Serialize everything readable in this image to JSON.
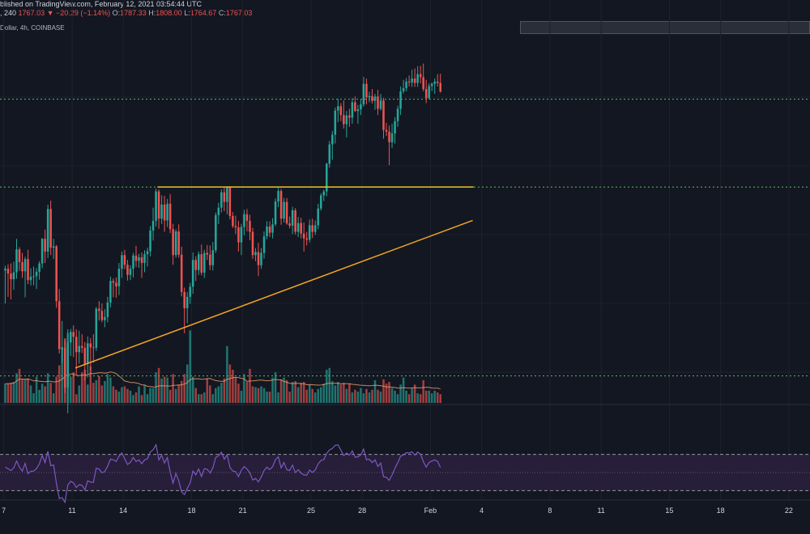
{
  "header": {
    "line1": {
      "published": "blished on TradingView.com, February 12, 2021 03:54:44 UTC",
      "interval_prefix": ", 240",
      "close_value": "1767.03",
      "change_arrow": "▼",
      "change": "−20.29 (−1.14%)",
      "o_label": "O:",
      "o_value": "1787.33",
      "h_label": "H:",
      "h_value": "1808.00",
      "l_label": "L:",
      "l_value": "1764.67",
      "c_label": "C:",
      "c_value": "1767.03"
    },
    "line2": "Dollar, 4h, COINBASE"
  },
  "colors": {
    "background": "#131722",
    "up": "#26a69a",
    "down": "#ef5350",
    "support_resistance": "#4caf50",
    "trendline": "#f5a623",
    "resistance_line": "#e8c41f",
    "volume_ma": "#f0a56d",
    "rsi_line": "#7e57c2",
    "rsi_band": "#2a1f3d"
  },
  "chart_data": [
    {
      "type": "candlestick",
      "title": "",
      "ylabel": "",
      "xlabel": "",
      "ylim": [
        1110,
        1880
      ],
      "x_ticks": [
        "7",
        "11",
        "14",
        "18",
        "21",
        "25",
        "28",
        "Feb",
        "4",
        "8",
        "11",
        "15",
        "18",
        "22"
      ],
      "horizontal_levels": [
        1120,
        1550,
        1750
      ],
      "resistance_segment": {
        "start": "Jan 16",
        "end": "Feb 4",
        "price": 1550
      },
      "trendline": {
        "from": [
          "Jan 11",
          1138
        ],
        "to": [
          "Feb 3",
          1474
        ]
      },
      "ohlc_4h": [
        [
          1360,
          1371,
          1285,
          1364
        ],
        [
          1364,
          1374,
          1300,
          1353
        ],
        [
          1353,
          1376,
          1294,
          1340
        ],
        [
          1340,
          1380,
          1316,
          1356
        ],
        [
          1356,
          1432,
          1341,
          1408
        ],
        [
          1408,
          1413,
          1359,
          1379
        ],
        [
          1379,
          1400,
          1343,
          1358
        ],
        [
          1358,
          1391,
          1299,
          1386
        ],
        [
          1386,
          1407,
          1329,
          1338
        ],
        [
          1338,
          1365,
          1326,
          1346
        ],
        [
          1346,
          1369,
          1326,
          1347
        ],
        [
          1347,
          1365,
          1318,
          1357
        ],
        [
          1357,
          1381,
          1339,
          1376
        ],
        [
          1376,
          1434,
          1365,
          1432
        ],
        [
          1432,
          1453,
          1377,
          1403
        ],
        [
          1403,
          1510,
          1388,
          1500
        ],
        [
          1500,
          1519,
          1395,
          1412
        ],
        [
          1412,
          1432,
          1386,
          1415
        ],
        [
          1415,
          1418,
          1275,
          1290
        ],
        [
          1290,
          1318,
          1171,
          1181
        ],
        [
          1181,
          1245,
          1150,
          1184
        ],
        [
          1184,
          1201,
          1081,
          1093
        ],
        [
          1093,
          1226,
          1035,
          1196
        ],
        [
          1196,
          1227,
          1165,
          1220
        ],
        [
          1220,
          1235,
          1163,
          1209
        ],
        [
          1209,
          1226,
          1123,
          1174
        ],
        [
          1174,
          1223,
          1148,
          1188
        ],
        [
          1188,
          1215,
          1172,
          1184
        ],
        [
          1184,
          1197,
          1110,
          1147
        ],
        [
          1147,
          1210,
          1116,
          1194
        ],
        [
          1194,
          1206,
          1132,
          1185
        ],
        [
          1185,
          1215,
          1150,
          1184
        ],
        [
          1184,
          1277,
          1177,
          1273
        ],
        [
          1273,
          1290,
          1246,
          1268
        ],
        [
          1268,
          1285,
          1242,
          1247
        ],
        [
          1247,
          1272,
          1231,
          1254
        ],
        [
          1254,
          1300,
          1242,
          1287
        ],
        [
          1287,
          1346,
          1276,
          1336
        ],
        [
          1336,
          1342,
          1299,
          1332
        ],
        [
          1332,
          1344,
          1298,
          1324
        ],
        [
          1324,
          1377,
          1304,
          1364
        ],
        [
          1364,
          1403,
          1343,
          1395
        ],
        [
          1395,
          1407,
          1363,
          1373
        ],
        [
          1373,
          1384,
          1337,
          1350
        ],
        [
          1350,
          1372,
          1338,
          1364
        ],
        [
          1364,
          1400,
          1344,
          1394
        ],
        [
          1394,
          1416,
          1368,
          1382
        ],
        [
          1382,
          1398,
          1366,
          1390
        ],
        [
          1390,
          1401,
          1343,
          1377
        ],
        [
          1377,
          1406,
          1356,
          1397
        ],
        [
          1397,
          1412,
          1369,
          1404
        ],
        [
          1404,
          1461,
          1392,
          1451
        ],
        [
          1451,
          1503,
          1428,
          1473
        ],
        [
          1473,
          1546,
          1460,
          1540
        ],
        [
          1540,
          1545,
          1455,
          1478
        ],
        [
          1478,
          1531,
          1466,
          1510
        ],
        [
          1510,
          1530,
          1448,
          1474
        ],
        [
          1474,
          1523,
          1459,
          1512
        ],
        [
          1512,
          1534,
          1445,
          1454
        ],
        [
          1454,
          1466,
          1373,
          1395
        ],
        [
          1395,
          1454,
          1389,
          1449
        ],
        [
          1449,
          1465,
          1389,
          1396
        ],
        [
          1396,
          1414,
          1301,
          1311
        ],
        [
          1311,
          1321,
          1217,
          1274
        ],
        [
          1274,
          1311,
          1240,
          1300
        ],
        [
          1300,
          1332,
          1284,
          1323
        ],
        [
          1323,
          1401,
          1307,
          1384
        ],
        [
          1384,
          1392,
          1336,
          1361
        ],
        [
          1361,
          1403,
          1350,
          1397
        ],
        [
          1397,
          1419,
          1349,
          1355
        ],
        [
          1355,
          1407,
          1343,
          1400
        ],
        [
          1400,
          1418,
          1384,
          1396
        ],
        [
          1396,
          1417,
          1361,
          1372
        ],
        [
          1372,
          1425,
          1360,
          1406
        ],
        [
          1406,
          1492,
          1400,
          1486
        ],
        [
          1486,
          1514,
          1466,
          1503
        ],
        [
          1503,
          1545,
          1492,
          1538
        ],
        [
          1538,
          1550,
          1495,
          1516
        ],
        [
          1516,
          1552,
          1488,
          1549
        ],
        [
          1549,
          1552,
          1476,
          1484
        ],
        [
          1484,
          1493,
          1457,
          1461
        ],
        [
          1461,
          1485,
          1443,
          1458
        ],
        [
          1458,
          1473,
          1403,
          1424
        ],
        [
          1424,
          1466,
          1395,
          1459
        ],
        [
          1459,
          1498,
          1440,
          1488
        ],
        [
          1488,
          1500,
          1449,
          1473
        ],
        [
          1473,
          1487,
          1429,
          1448
        ],
        [
          1448,
          1457,
          1386,
          1395
        ],
        [
          1395,
          1411,
          1381,
          1402
        ],
        [
          1402,
          1423,
          1347,
          1372
        ],
        [
          1372,
          1411,
          1364,
          1400
        ],
        [
          1400,
          1449,
          1387,
          1438
        ],
        [
          1438,
          1472,
          1431,
          1460
        ],
        [
          1460,
          1472,
          1436,
          1446
        ],
        [
          1446,
          1479,
          1433,
          1465
        ],
        [
          1465,
          1524,
          1461,
          1517
        ],
        [
          1517,
          1548,
          1504,
          1541
        ],
        [
          1541,
          1546,
          1464,
          1478
        ],
        [
          1478,
          1525,
          1469,
          1516
        ],
        [
          1516,
          1525,
          1464,
          1467
        ],
        [
          1467,
          1483,
          1456,
          1462
        ],
        [
          1462,
          1505,
          1443,
          1497
        ],
        [
          1497,
          1502,
          1442,
          1448
        ],
        [
          1448,
          1482,
          1436,
          1468
        ],
        [
          1468,
          1480,
          1433,
          1444
        ],
        [
          1444,
          1469,
          1403,
          1433
        ],
        [
          1433,
          1448,
          1417,
          1430
        ],
        [
          1430,
          1476,
          1424,
          1463
        ],
        [
          1463,
          1478,
          1434,
          1448
        ],
        [
          1448,
          1474,
          1441,
          1463
        ],
        [
          1463,
          1512,
          1454,
          1501
        ],
        [
          1501,
          1536,
          1496,
          1531
        ],
        [
          1531,
          1544,
          1518,
          1540
        ],
        [
          1540,
          1605,
          1529,
          1603
        ],
        [
          1603,
          1655,
          1594,
          1647
        ],
        [
          1647,
          1678,
          1612,
          1669
        ],
        [
          1669,
          1731,
          1649,
          1724
        ],
        [
          1724,
          1751,
          1698,
          1734
        ],
        [
          1734,
          1741,
          1700,
          1714
        ],
        [
          1714,
          1747,
          1683,
          1693
        ],
        [
          1693,
          1723,
          1663,
          1713
        ],
        [
          1713,
          1728,
          1687,
          1708
        ],
        [
          1708,
          1752,
          1694,
          1743
        ],
        [
          1743,
          1756,
          1721,
          1723
        ],
        [
          1723,
          1737,
          1694,
          1727
        ],
        [
          1727,
          1751,
          1714,
          1738
        ],
        [
          1738,
          1801,
          1733,
          1785
        ],
        [
          1785,
          1797,
          1738,
          1754
        ],
        [
          1754,
          1767,
          1743,
          1757
        ],
        [
          1757,
          1773,
          1740,
          1746
        ],
        [
          1746,
          1762,
          1726,
          1756
        ],
        [
          1756,
          1771,
          1714,
          1728
        ],
        [
          1728,
          1762,
          1724,
          1747
        ],
        [
          1747,
          1753,
          1660,
          1680
        ],
        [
          1680,
          1696,
          1666,
          1676
        ],
        [
          1676,
          1690,
          1600,
          1652
        ],
        [
          1652,
          1694,
          1639,
          1672
        ],
        [
          1672,
          1709,
          1649,
          1700
        ],
        [
          1700,
          1735,
          1687,
          1728
        ],
        [
          1728,
          1779,
          1714,
          1768
        ],
        [
          1768,
          1794,
          1763,
          1775
        ],
        [
          1775,
          1798,
          1768,
          1790
        ],
        [
          1790,
          1804,
          1779,
          1788
        ],
        [
          1788,
          1817,
          1778,
          1797
        ],
        [
          1797,
          1820,
          1778,
          1787
        ],
        [
          1787,
          1825,
          1778,
          1807
        ],
        [
          1807,
          1826,
          1786,
          1800
        ],
        [
          1800,
          1831,
          1768,
          1773
        ],
        [
          1773,
          1794,
          1741,
          1752
        ],
        [
          1752,
          1786,
          1750,
          1780
        ],
        [
          1780,
          1788,
          1768,
          1785
        ],
        [
          1785,
          1797,
          1762,
          1790
        ],
        [
          1790,
          1807,
          1779,
          1787
        ],
        [
          1787,
          1808,
          1765,
          1767
        ]
      ],
      "volume_relative": [
        0.22,
        0.22,
        0.23,
        0.24,
        0.34,
        0.39,
        0.27,
        0.27,
        0.28,
        0.2,
        0.11,
        0.3,
        0.15,
        0.22,
        0.19,
        0.34,
        0.23,
        0.11,
        0.3,
        0.43,
        0.64,
        0.74,
        0.8,
        0.3,
        0.35,
        0.1,
        0.2,
        0.35,
        0.38,
        0.21,
        0.42,
        0.23,
        0.26,
        0.31,
        0.2,
        0.25,
        0.33,
        0.29,
        0.19,
        0.15,
        0.13,
        0.18,
        0.19,
        0.16,
        0.14,
        0.09,
        0.12,
        0.19,
        0.09,
        0.2,
        0.1,
        0.17,
        0.17,
        0.35,
        0.4,
        0.28,
        0.3,
        0.29,
        0.15,
        0.33,
        0.16,
        0.21,
        0.25,
        0.33,
        0.44,
        0.83,
        0.3,
        0.17,
        0.1,
        0.1,
        0.12,
        0.28,
        0.2,
        0.1,
        0.17,
        0.19,
        0.23,
        0.28,
        0.65,
        0.44,
        0.38,
        0.29,
        0.22,
        0.14,
        0.33,
        0.24,
        0.39,
        0.19,
        0.18,
        0.17,
        0.19,
        0.17,
        0.13,
        0.13,
        0.29,
        0.35,
        0.12,
        0.27,
        0.29,
        0.26,
        0.13,
        0.24,
        0.25,
        0.18,
        0.23,
        0.24,
        0.15,
        0.21,
        0.16,
        0.12,
        0.16,
        0.18,
        0.22,
        0.38,
        0.4,
        0.25,
        0.2,
        0.24,
        0.21,
        0.23,
        0.16,
        0.22,
        0.12,
        0.15,
        0.13,
        0.17,
        0.11,
        0.16,
        0.12,
        0.15,
        0.26,
        0.15,
        0.13,
        0.27,
        0.22,
        0.24,
        0.17,
        0.14,
        0.1,
        0.21,
        0.29,
        0.14,
        0.1,
        0.17,
        0.21,
        0.11,
        0.1,
        0.26,
        0.14,
        0.14,
        0.11,
        0.14,
        0.12,
        0.1
      ]
    },
    {
      "type": "line",
      "title": "",
      "ylim": [
        0,
        100
      ],
      "bands": [
        30,
        50,
        70
      ],
      "rsi": [
        55.8,
        54.1,
        52.2,
        55.2,
        62.7,
        56.1,
        51.5,
        60.1,
        48.8,
        51.3,
        51.6,
        54.3,
        59.5,
        68.8,
        60.8,
        73.3,
        57.5,
        58.3,
        37.9,
        21.4,
        22.2,
        17.1,
        36.2,
        40.3,
        38.7,
        33.6,
        36.6,
        35.9,
        30.9,
        40.9,
        39.4,
        39.2,
        54.8,
        53.8,
        49.6,
        51.2,
        57.0,
        64.7,
        63.9,
        62.2,
        67.9,
        71.6,
        65.2,
        58.8,
        61.3,
        66.5,
        62.2,
        63.8,
        59.7,
        63.8,
        65.2,
        72.8,
        75.2,
        80.6,
        63.9,
        68.9,
        60.5,
        66.4,
        50.6,
        38.2,
        49.0,
        40.7,
        28.6,
        25.6,
        32.5,
        38.2,
        51.7,
        47.5,
        53.9,
        45.5,
        54.3,
        53.6,
        49.5,
        55.3,
        66.5,
        68.5,
        72.4,
        64.7,
        69.4,
        55.6,
        51.6,
        51.0,
        45.5,
        52.4,
        56.6,
        53.8,
        49.5,
        41.7,
        43.5,
        39.6,
        45.0,
        52.1,
        55.9,
        53.2,
        56.4,
        64.3,
        67.3,
        55.1,
        61.0,
        53.0,
        52.2,
        58.1,
        49.9,
        53.1,
        49.2,
        47.4,
        47.0,
        52.8,
        50.2,
        52.7,
        59.5,
        63.3,
        64.3,
        71.1,
        74.9,
        76.5,
        80.0,
        80.5,
        74.7,
        68.6,
        71.4,
        69.3,
        73.9,
        66.8,
        67.4,
        69.4,
        75.8,
        64.1,
        64.6,
        61.0,
        63.9,
        56.6,
        60.4,
        45.4,
        44.7,
        41.4,
        47.2,
        54.8,
        60.8,
        68.2,
        69.4,
        71.9,
        71.5,
        72.9,
        69.2,
        72.5,
        70.2,
        62.0,
        56.0,
        61.1,
        62.7,
        63.9,
        62.2,
        55.5
      ]
    }
  ]
}
